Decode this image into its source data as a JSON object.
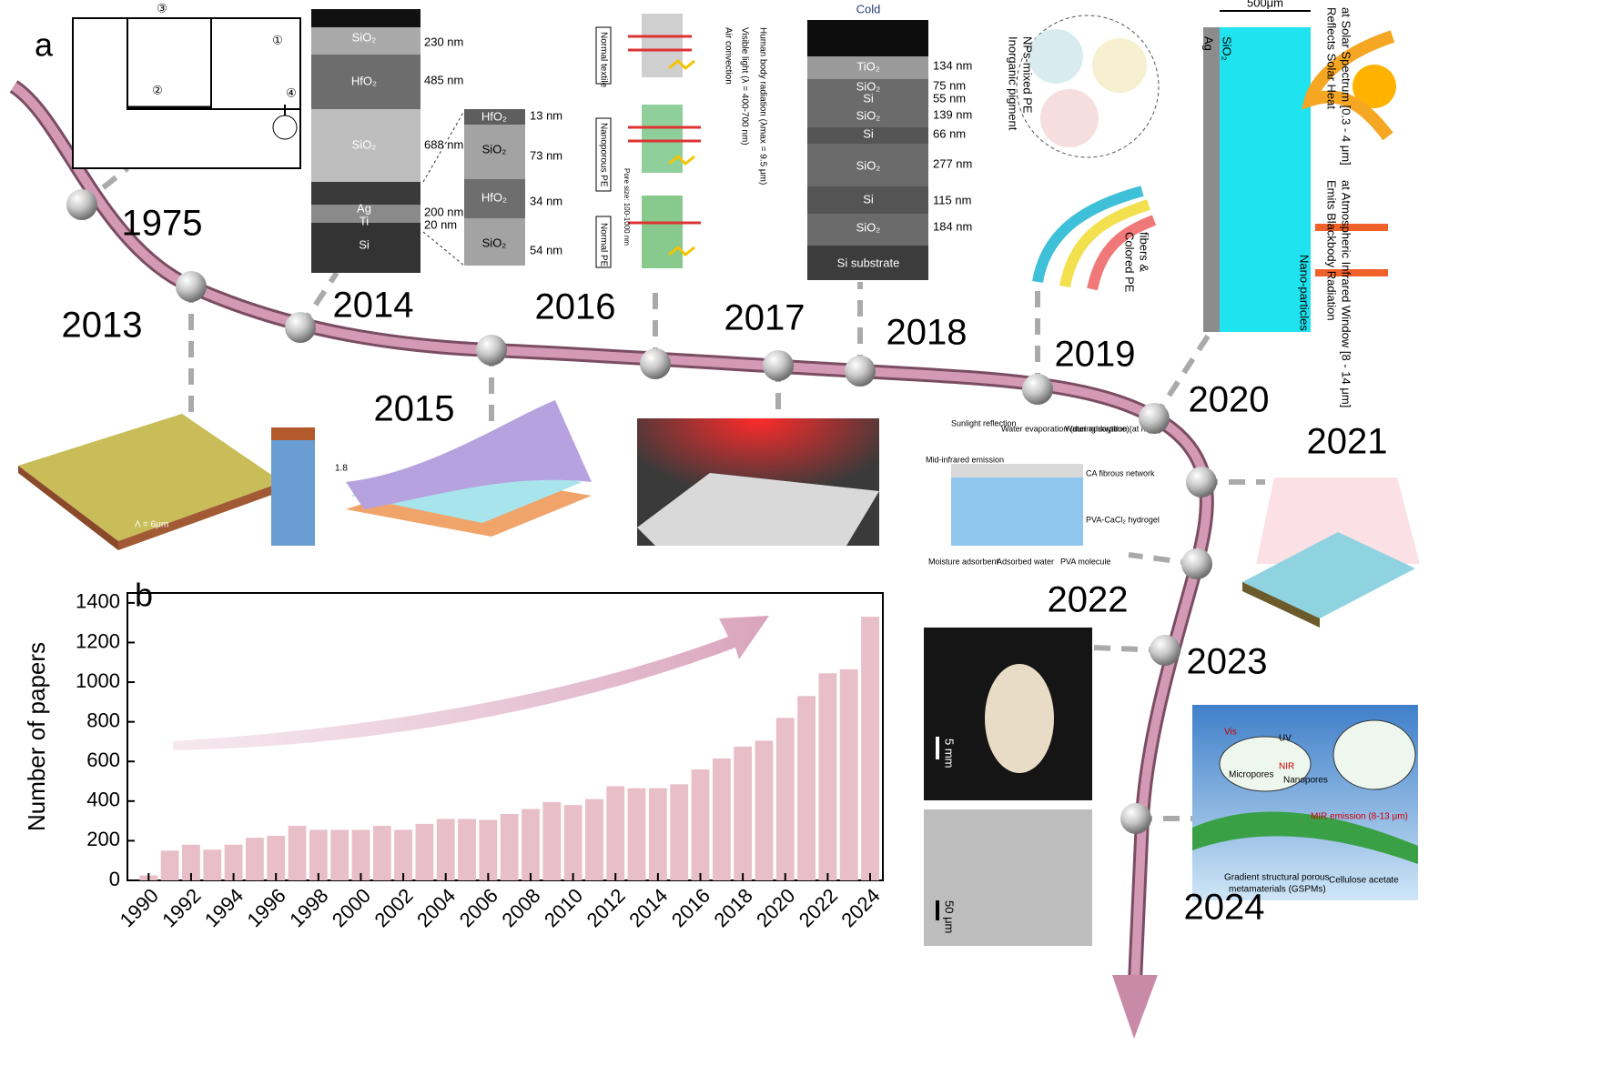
{
  "panel_labels": [
    "a",
    "b"
  ],
  "timeline": {
    "years": [
      "1975",
      "2013",
      "2014",
      "2015",
      "2016",
      "2017",
      "2018",
      "2019",
      "2020",
      "2021",
      "2022",
      "2023",
      "2024"
    ]
  },
  "insets": {
    "i1975": {
      "callouts": [
        "③",
        "①",
        "②",
        "④"
      ]
    },
    "i2013": {
      "labels": [
        "Λ = 6μm",
        "1.8"
      ]
    },
    "i2014": {
      "layers": [
        "SiO₂",
        "HfO₂",
        "SiO₂",
        "Ag",
        "Ti",
        "Si"
      ],
      "thickness": [
        "230 nm",
        "485 nm",
        "688 nm",
        "200 nm",
        "20 nm"
      ],
      "zoom_layers": [
        "HfO₂",
        "SiO₂",
        "HfO₂",
        "SiO₂"
      ],
      "zoom_thickness": [
        "13 nm",
        "73 nm",
        "34 nm",
        "54 nm"
      ]
    },
    "i2016": {
      "labels": [
        "Normal textile",
        "Nanoporous PE",
        "Normal PE",
        "Pore size: 100-1000 nm",
        "Human body radiation (λmax = 9.5 μm)",
        "Visible light (λ = 400-700 nm)",
        "Air convection"
      ]
    },
    "i2018": {
      "title": "Cold",
      "layers": [
        "TiO₂",
        "SiO₂",
        "Si",
        "SiO₂",
        "Si",
        "SiO₂",
        "Si",
        "SiO₂",
        "Si substrate"
      ],
      "thickness": [
        "134 nm",
        "75 nm",
        "55 nm",
        "139 nm",
        "66 nm",
        "277 nm",
        "115 nm",
        "184 nm"
      ]
    },
    "i2019": {
      "labels": [
        "Inorganic pigment",
        "NPs-mixed PE",
        "Colored PE",
        "fibers &"
      ]
    },
    "i2020": {
      "labels": [
        "500μm",
        "Ag",
        "SiO₂",
        "Reflects Solar Heat",
        "at Solar Spectrum [0.3 - 4 μm]",
        "Emits Blackbody Radiation",
        "at Atmospheric Infrared Window [8 - 14 μm]",
        "Nano-particles"
      ]
    },
    "i2022": {
      "labels": [
        "Sunlight reflection",
        "Water evaporation (during daytime)",
        "Water adsorption (at night)",
        "Mid-infrared emission",
        "CA fibrous network",
        "PVA-CaCl₂ hydrogel",
        "Moisture adsorbent",
        "Adsorbed water",
        "PVA molecule"
      ]
    },
    "i2023": {
      "labels": [
        "5 mm",
        "50 μm"
      ]
    },
    "i2024": {
      "labels": [
        "Vis",
        "UV",
        "NIR",
        "Micropores",
        "Nanopores",
        "MIR emission (8-13 μm)",
        "Gradient structural porous",
        "metamaterials (GSPMs)",
        "Cellulose acetate"
      ]
    }
  },
  "chart_data": {
    "type": "bar",
    "y_label": "Number of papers",
    "color": "#e8bfc8",
    "x": [
      1990,
      1991,
      1992,
      1993,
      1994,
      1995,
      1996,
      1997,
      1998,
      1999,
      2000,
      2001,
      2002,
      2003,
      2004,
      2005,
      2006,
      2007,
      2008,
      2009,
      2010,
      2011,
      2012,
      2013,
      2014,
      2015,
      2016,
      2017,
      2018,
      2019,
      2020,
      2021,
      2022,
      2023,
      2024
    ],
    "values": [
      25,
      150,
      180,
      155,
      180,
      215,
      225,
      275,
      255,
      255,
      255,
      275,
      255,
      285,
      310,
      310,
      305,
      335,
      360,
      395,
      380,
      410,
      475,
      465,
      465,
      485,
      560,
      615,
      675,
      705,
      820,
      930,
      1045,
      1065,
      1330
    ],
    "xlim": [
      1989,
      2024.6
    ],
    "xticks": [
      1990,
      1992,
      1994,
      1996,
      1998,
      2000,
      2002,
      2004,
      2006,
      2008,
      2010,
      2012,
      2014,
      2016,
      2018,
      2020,
      2022,
      2024
    ],
    "ylim": [
      0,
      1450
    ],
    "yticks": [
      0,
      200,
      400,
      600,
      800,
      1000,
      1200,
      1400
    ]
  }
}
